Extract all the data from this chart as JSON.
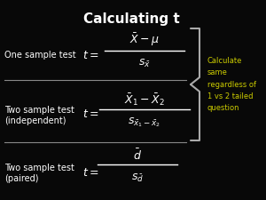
{
  "background_color": "#080808",
  "title": "Calculating t",
  "title_color": "#ffffff",
  "title_fontsize": 11,
  "title_bold": true,
  "label_color": "#ffffff",
  "formula_color": "#ffffff",
  "line_color": "#888888",
  "brace_color": "#aaaaaa",
  "note_color": "#cccc00",
  "note_text": "Calculate\nsame\nregardless of\n1 vs 2 tailed\nquestion",
  "s1_label": "One sample test",
  "s2_label": "Two sample test\n(independent)",
  "s3_label": "Two sample test\n(paired)"
}
